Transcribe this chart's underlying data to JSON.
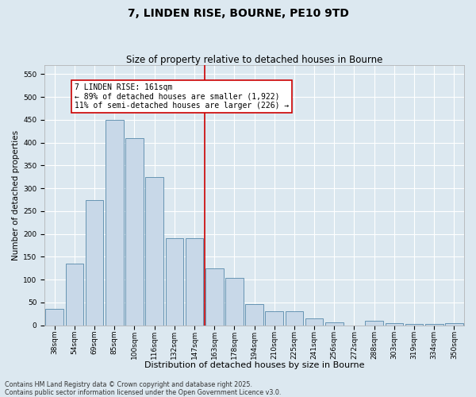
{
  "title": "7, LINDEN RISE, BOURNE, PE10 9TD",
  "subtitle": "Size of property relative to detached houses in Bourne",
  "xlabel": "Distribution of detached houses by size in Bourne",
  "ylabel": "Number of detached properties",
  "categories": [
    "38sqm",
    "54sqm",
    "69sqm",
    "85sqm",
    "100sqm",
    "116sqm",
    "132sqm",
    "147sqm",
    "163sqm",
    "178sqm",
    "194sqm",
    "210sqm",
    "225sqm",
    "241sqm",
    "256sqm",
    "272sqm",
    "288sqm",
    "303sqm",
    "319sqm",
    "334sqm",
    "350sqm"
  ],
  "values": [
    35,
    135,
    275,
    450,
    410,
    325,
    190,
    190,
    125,
    103,
    46,
    30,
    30,
    15,
    6,
    0,
    9,
    5,
    3,
    3,
    5
  ],
  "bar_color": "#c8d8e8",
  "bar_edgecolor": "#5588aa",
  "bar_linewidth": 0.6,
  "vline_color": "#cc0000",
  "annotation_title": "7 LINDEN RISE: 161sqm",
  "annotation_line1": "← 89% of detached houses are smaller (1,922)",
  "annotation_line2": "11% of semi-detached houses are larger (226) →",
  "annotation_box_facecolor": "#ffffff",
  "annotation_box_edgecolor": "#cc0000",
  "ylim": [
    0,
    570
  ],
  "yticks": [
    0,
    50,
    100,
    150,
    200,
    250,
    300,
    350,
    400,
    450,
    500,
    550
  ],
  "bg_color": "#dce8f0",
  "plot_bg_color": "#dce8f0",
  "grid_color": "#ffffff",
  "footnote1": "Contains HM Land Registry data © Crown copyright and database right 2025.",
  "footnote2": "Contains public sector information licensed under the Open Government Licence v3.0.",
  "title_fontsize": 10,
  "subtitle_fontsize": 8.5,
  "xlabel_fontsize": 8,
  "ylabel_fontsize": 7.5,
  "tick_fontsize": 6.5,
  "annotation_fontsize": 7,
  "footnote_fontsize": 5.8
}
